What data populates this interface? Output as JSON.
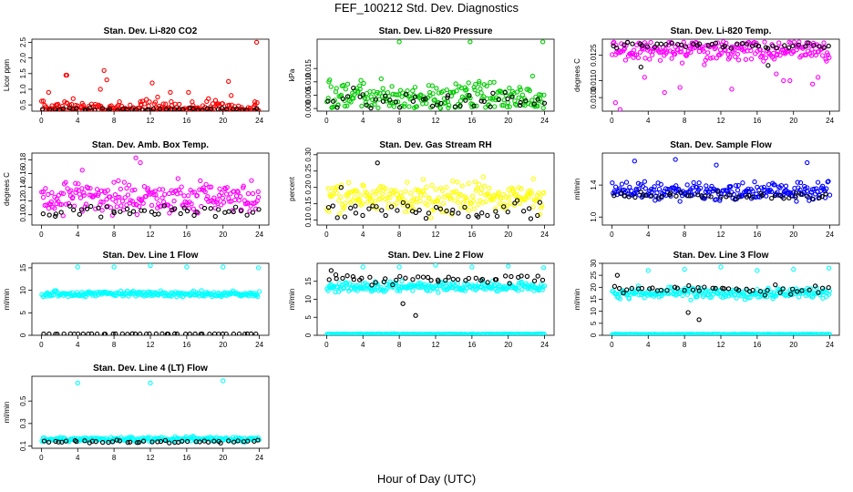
{
  "title": "FEF_100212  Std. Dev. Diagnostics",
  "xlabel": "Hour of Day (UTC)",
  "colors": {
    "red": "#ff0000",
    "green": "#00cc00",
    "magenta": "#ff00ff",
    "yellow": "#ffff00",
    "blue": "#0000ff",
    "cyan": "#00ffff",
    "black": "#000000"
  },
  "chart_data": [
    {
      "type": "scatter",
      "title": "Stan. Dev. Li-820 CO2",
      "ylabel": "Licor ppm",
      "xlim": [
        0,
        24
      ],
      "ylim": [
        0.3,
        2.6
      ],
      "xticks": [
        "0",
        "4",
        "8",
        "12",
        "16",
        "20",
        "24"
      ],
      "yticks": [
        "0.5",
        "1.0",
        "1.5",
        "2.0",
        "2.5"
      ],
      "series": [
        {
          "color": "red",
          "noise": {
            "base": 0.38,
            "spread": 0.25,
            "min": 0.3
          },
          "points": [
            [
              0.8,
              0.9
            ],
            [
              2.7,
              1.45
            ],
            [
              2.8,
              1.45
            ],
            [
              3.5,
              0.7
            ],
            [
              4.5,
              0.55
            ],
            [
              6.5,
              1.0
            ],
            [
              6.9,
              1.6
            ],
            [
              7.2,
              1.3
            ],
            [
              8.6,
              0.6
            ],
            [
              10.9,
              0.6
            ],
            [
              12.2,
              1.2
            ],
            [
              12.8,
              0.75
            ],
            [
              14.2,
              0.9
            ],
            [
              16.2,
              0.9
            ],
            [
              16.6,
              0.6
            ],
            [
              18.4,
              0.7
            ],
            [
              20.6,
              1.25
            ],
            [
              20.9,
              0.8
            ],
            [
              23.7,
              2.5
            ],
            [
              23.5,
              0.6
            ]
          ]
        },
        {
          "color": "black",
          "noise": {
            "base": 0.36,
            "spread": 0.04,
            "min": 0.3
          }
        }
      ]
    },
    {
      "type": "scatter",
      "title": "Stan. Dev. Li-820 Pressure",
      "ylabel": "kPa",
      "xlim": [
        0,
        24
      ],
      "ylim": [
        -0.001,
        0.026
      ],
      "xticks": [
        "0",
        "4",
        "8",
        "12",
        "16",
        "20",
        "24"
      ],
      "yticks": [
        "0.000",
        "0.005",
        "0.010",
        "0.015"
      ],
      "series": [
        {
          "color": "green",
          "noise": {
            "base": 0.004,
            "spread": 0.006,
            "min": 0.0
          },
          "points": [
            [
              8.0,
              0.025
            ],
            [
              15.8,
              0.025
            ],
            [
              23.8,
              0.025
            ]
          ]
        },
        {
          "color": "black",
          "noise": {
            "base": 0.003,
            "spread": 0.004,
            "min": 0.0
          }
        }
      ]
    },
    {
      "type": "scatter",
      "title": "Stan. Dev. Li-820 Temp.",
      "ylabel": "degrees C",
      "xlim": [
        0,
        24
      ],
      "ylim": [
        0.0092,
        0.01345
      ],
      "xticks": [
        "0",
        "4",
        "8",
        "12",
        "16",
        "20",
        "24"
      ],
      "yticks": [
        "0.0100",
        "0.0110",
        "0.0125"
      ],
      "series": [
        {
          "color": "magenta",
          "noise": {
            "base": 0.0128,
            "spread": 0.0006,
            "max": 0.0133
          },
          "points": [
            [
              0.4,
              0.0097
            ],
            [
              0.9,
              0.0093
            ],
            [
              3.6,
              0.0112
            ],
            [
              5.8,
              0.0103
            ],
            [
              7.5,
              0.0106
            ],
            [
              13.2,
              0.0105
            ],
            [
              18.1,
              0.0114
            ],
            [
              18.9,
              0.011
            ],
            [
              19.6,
              0.011
            ],
            [
              22.1,
              0.0108
            ],
            [
              22.7,
              0.0112
            ]
          ]
        },
        {
          "color": "black",
          "noise": {
            "base": 0.0131,
            "spread": 0.0002,
            "max": 0.0133
          },
          "points": [
            [
              3.2,
              0.0118
            ],
            [
              17.2,
              0.0119
            ]
          ]
        }
      ]
    },
    {
      "type": "scatter",
      "title": "Stan. Dev. Amb. Box Temp.",
      "ylabel": "degrees C",
      "xlim": [
        0,
        24
      ],
      "ylim": [
        0.085,
        0.19
      ],
      "xticks": [
        "0",
        "4",
        "8",
        "12",
        "16",
        "20",
        "24"
      ],
      "yticks": [
        "0.10",
        "0.12",
        "0.14",
        "0.16",
        "0.18"
      ],
      "series": [
        {
          "color": "magenta",
          "noise": {
            "base": 0.125,
            "spread": 0.022,
            "min": 0.09
          },
          "points": [
            [
              10.4,
              0.183
            ],
            [
              10.9,
              0.176
            ],
            [
              4.5,
              0.165
            ]
          ]
        },
        {
          "color": "black",
          "noise": {
            "base": 0.105,
            "spread": 0.008,
            "min": 0.09
          }
        }
      ]
    },
    {
      "type": "scatter",
      "title": "Stan. Dev. Gas Stream RH",
      "ylabel": "percent",
      "xlim": [
        0,
        24
      ],
      "ylim": [
        0.085,
        0.305
      ],
      "xticks": [
        "0",
        "4",
        "8",
        "12",
        "16",
        "20",
        "24"
      ],
      "yticks": [
        "0.10",
        "0.15",
        "0.20",
        "0.25",
        "0.30"
      ],
      "series": [
        {
          "color": "yellow",
          "noise": {
            "base": 0.17,
            "spread": 0.045,
            "min": 0.095
          }
        },
        {
          "color": "black",
          "noise": {
            "base": 0.13,
            "spread": 0.025,
            "min": 0.095
          },
          "points": [
            [
              5.6,
              0.275
            ],
            [
              1.6,
              0.2
            ]
          ]
        }
      ]
    },
    {
      "type": "scatter",
      "title": "Stan. Dev. Sample Flow",
      "ylabel": "ml/min",
      "xlim": [
        0,
        24
      ],
      "ylim": [
        0.9,
        1.8
      ],
      "xticks": [
        "0",
        "4",
        "8",
        "12",
        "16",
        "20",
        "24"
      ],
      "yticks": [
        "1.0",
        "1.4"
      ],
      "series": [
        {
          "color": "blue",
          "noise": {
            "base": 1.32,
            "spread": 0.11,
            "min": 0.95
          },
          "points": [
            [
              7.0,
              1.72
            ],
            [
              11.5,
              1.65
            ],
            [
              2.5,
              1.7
            ],
            [
              21.5,
              1.68
            ]
          ]
        },
        {
          "color": "black",
          "noise": {
            "base": 1.26,
            "spread": 0.05,
            "min": 0.95
          }
        }
      ]
    },
    {
      "type": "scatter",
      "title": "Stan. Dev. Line 1 Flow",
      "ylabel": "ml/min",
      "xlim": [
        0,
        24
      ],
      "ylim": [
        0,
        16
      ],
      "xticks": [
        "0",
        "4",
        "8",
        "12",
        "16",
        "20",
        "24"
      ],
      "yticks": [
        "0",
        "5",
        "10",
        "15"
      ],
      "series": [
        {
          "color": "cyan",
          "noise": {
            "base": 9.2,
            "spread": 0.6,
            "min": 8.0
          },
          "points": [
            [
              4.0,
              15.2
            ],
            [
              8.0,
              15.2
            ],
            [
              12.0,
              15.5
            ],
            [
              16.0,
              15.2
            ],
            [
              20.0,
              15.2
            ],
            [
              23.9,
              15.0
            ]
          ]
        },
        {
          "color": "black",
          "noise": {
            "base": 0.3,
            "spread": 0.05,
            "min": 0.2
          }
        }
      ]
    },
    {
      "type": "scatter",
      "title": "Stan. Dev. Line 2 Flow",
      "ylabel": "ml/min",
      "xlim": [
        0,
        24
      ],
      "ylim": [
        0,
        20
      ],
      "xticks": [
        "0",
        "4",
        "8",
        "12",
        "16",
        "20",
        "24"
      ],
      "yticks": [
        "0",
        "5",
        "10",
        "15"
      ],
      "series": [
        {
          "color": "cyan",
          "noise": {
            "base": 13.5,
            "spread": 1.4,
            "min": 11.0
          },
          "points": [
            [
              4.0,
              19.0
            ],
            [
              8.0,
              19.0
            ],
            [
              12.0,
              19.5
            ],
            [
              16.0,
              19.0
            ],
            [
              20.0,
              19.2
            ],
            [
              23.9,
              18.8
            ]
          ]
        },
        {
          "color": "cyan",
          "noise": {
            "base": 0.3,
            "spread": 0.1,
            "min": 0.2
          }
        },
        {
          "color": "black",
          "noise": {
            "base": 15.5,
            "spread": 1.2,
            "min": 13.0
          },
          "points": [
            [
              0.5,
              18.0
            ],
            [
              9.8,
              5.5
            ],
            [
              8.4,
              8.8
            ],
            [
              3.0,
              15.5
            ]
          ]
        }
      ]
    },
    {
      "type": "scatter",
      "title": "Stan. Dev. Line 3 Flow",
      "ylabel": "ml/min",
      "xlim": [
        0,
        24
      ],
      "ylim": [
        0,
        30
      ],
      "xticks": [
        "0",
        "4",
        "8",
        "12",
        "16",
        "20",
        "24"
      ],
      "yticks": [
        "0",
        "5",
        "10",
        "15",
        "20",
        "25",
        "30"
      ],
      "series": [
        {
          "color": "cyan",
          "noise": {
            "base": 17.5,
            "spread": 2.2,
            "min": 13.5
          },
          "points": [
            [
              4.0,
              27.0
            ],
            [
              8.0,
              27.5
            ],
            [
              12.0,
              28.5
            ],
            [
              16.0,
              27.0
            ],
            [
              20.0,
              27.5
            ],
            [
              23.9,
              28.0
            ]
          ]
        },
        {
          "color": "cyan",
          "noise": {
            "base": 0.4,
            "spread": 0.1,
            "min": 0.3
          }
        },
        {
          "color": "black",
          "noise": {
            "base": 19.0,
            "spread": 1.8,
            "min": 15.0
          },
          "points": [
            [
              9.6,
              6.5
            ],
            [
              0.6,
              25.0
            ],
            [
              8.4,
              9.5
            ]
          ]
        }
      ]
    },
    {
      "type": "scatter",
      "title": "Stan. Dev. Line 4 (LT) Flow",
      "ylabel": "ml/min",
      "xlim": [
        0,
        24
      ],
      "ylim": [
        0.08,
        0.72
      ],
      "xticks": [
        "0",
        "4",
        "8",
        "12",
        "16",
        "20",
        "24"
      ],
      "yticks": [
        "0.1",
        "0.3",
        "0.5"
      ],
      "series": [
        {
          "color": "cyan",
          "noise": {
            "base": 0.16,
            "spread": 0.02,
            "min": 0.12
          },
          "points": [
            [
              4.0,
              0.66
            ],
            [
              12.0,
              0.66
            ],
            [
              20.0,
              0.68
            ]
          ]
        },
        {
          "color": "black",
          "noise": {
            "base": 0.14,
            "spread": 0.012,
            "min": 0.11
          }
        }
      ]
    }
  ]
}
